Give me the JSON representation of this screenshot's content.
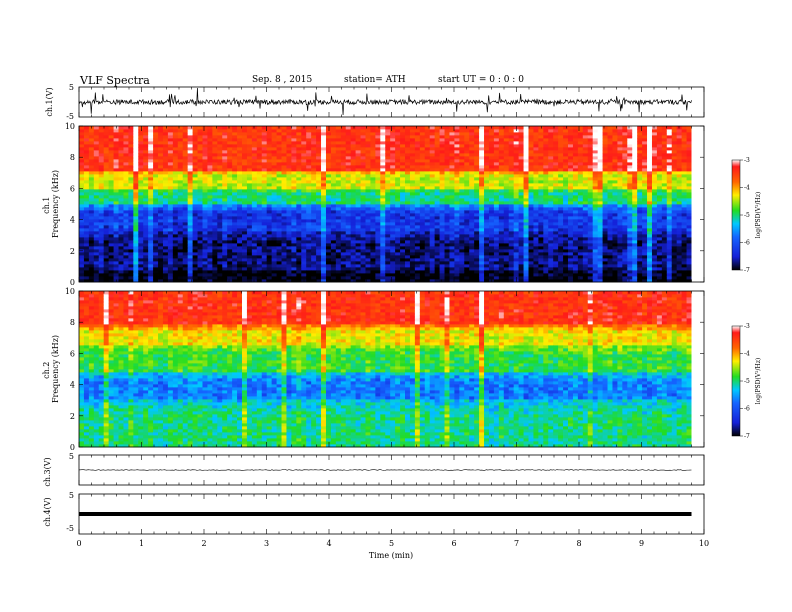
{
  "header": {
    "title": "VLF  Spectra",
    "date": "Sep. 8  , 2015",
    "station": "station= ATH",
    "start": "start  UT =   0 : 0 : 0"
  },
  "colors": {
    "lowest": "#000000",
    "low": "#1520d8",
    "mid_low": "#00c8ff",
    "mid": "#22dd22",
    "mid_high": "#ffee00",
    "high": "#ff6600",
    "highest": "#ff1a1a",
    "saturation": "#ffffff"
  },
  "chart_data": [
    {
      "type": "line",
      "name": "ch.1 waveform",
      "ylabel": "ch.1(V)",
      "ylim": [
        -5,
        5
      ],
      "y_ticks": [
        "5",
        "-5"
      ],
      "xlim": [
        0,
        10
      ],
      "x_unit": "min",
      "baseline_v": 0,
      "trace_end_min": 9.8,
      "activity": "noisy burst-like signal with spikes up to about ±5 V"
    },
    {
      "type": "heatmap",
      "name": "ch.1 spectrogram",
      "ylabel": "ch.1\nFrequency  (kHz)",
      "ylim": [
        0,
        10
      ],
      "y_ticks": [
        "0",
        "2",
        "4",
        "6",
        "8",
        "10"
      ],
      "xlim": [
        0,
        10
      ],
      "data_end_min": 9.8,
      "colorbar": {
        "label": "log(PSD(V²/Hz)",
        "range": [
          -7,
          -3
        ],
        "ticks": [
          "-3",
          "-4",
          "-5",
          "-6",
          "-7"
        ]
      },
      "band_levels_log_psd": [
        {
          "freq_khz": [
            0,
            0.8
          ],
          "level": -6.9
        },
        {
          "freq_khz": [
            0.8,
            3.2
          ],
          "level": -6.6
        },
        {
          "freq_khz": [
            3.2,
            5.0
          ],
          "level": -6.2
        },
        {
          "freq_khz": [
            5.0,
            6.0
          ],
          "level": -5.2
        },
        {
          "freq_khz": [
            6.0,
            7.2
          ],
          "level": -4.5
        },
        {
          "freq_khz": [
            7.2,
            10
          ],
          "level": -3.4
        }
      ]
    },
    {
      "type": "heatmap",
      "name": "ch.2 spectrogram",
      "ylabel": "ch.2\nFrequency  (kHz)",
      "ylim": [
        0,
        10
      ],
      "y_ticks": [
        "0",
        "2",
        "4",
        "6",
        "8",
        "10"
      ],
      "xlim": [
        0,
        10
      ],
      "data_end_min": 9.8,
      "colorbar": {
        "label": "log(PSD(V²/Hz)",
        "range": [
          -7,
          -3
        ],
        "ticks": [
          "-3",
          "-4",
          "-5",
          "-6",
          "-7"
        ]
      },
      "band_levels_log_psd": [
        {
          "freq_khz": [
            0,
            3.0
          ],
          "level": -5.2
        },
        {
          "freq_khz": [
            3.0,
            4.8
          ],
          "level": -5.8
        },
        {
          "freq_khz": [
            4.8,
            6.5
          ],
          "level": -5.0
        },
        {
          "freq_khz": [
            6.5,
            7.8
          ],
          "level": -4.4
        },
        {
          "freq_khz": [
            7.8,
            10
          ],
          "level": -3.4
        }
      ]
    },
    {
      "type": "line",
      "name": "ch.3 waveform",
      "ylabel": "ch.3(V)",
      "ylim": [
        -5,
        5
      ],
      "y_ticks": [
        "5",
        "-5"
      ],
      "xlim": [
        0,
        10
      ],
      "baseline_v": 0,
      "trace_end_min": 9.8,
      "activity": "quiet, near zero"
    },
    {
      "type": "line",
      "name": "ch.4 waveform",
      "ylabel": "ch.4(V)",
      "ylim": [
        -5,
        5
      ],
      "y_ticks": [
        "5",
        "-5"
      ],
      "xlim": [
        0,
        10
      ],
      "xlabel": "Time  (min)",
      "x_ticks": [
        "0",
        "1",
        "2",
        "3",
        "4",
        "5",
        "6",
        "7",
        "8",
        "9",
        "10"
      ],
      "baseline_v": 0,
      "trace_end_min": 9.8,
      "activity": "constant thick line at 0 V"
    }
  ]
}
